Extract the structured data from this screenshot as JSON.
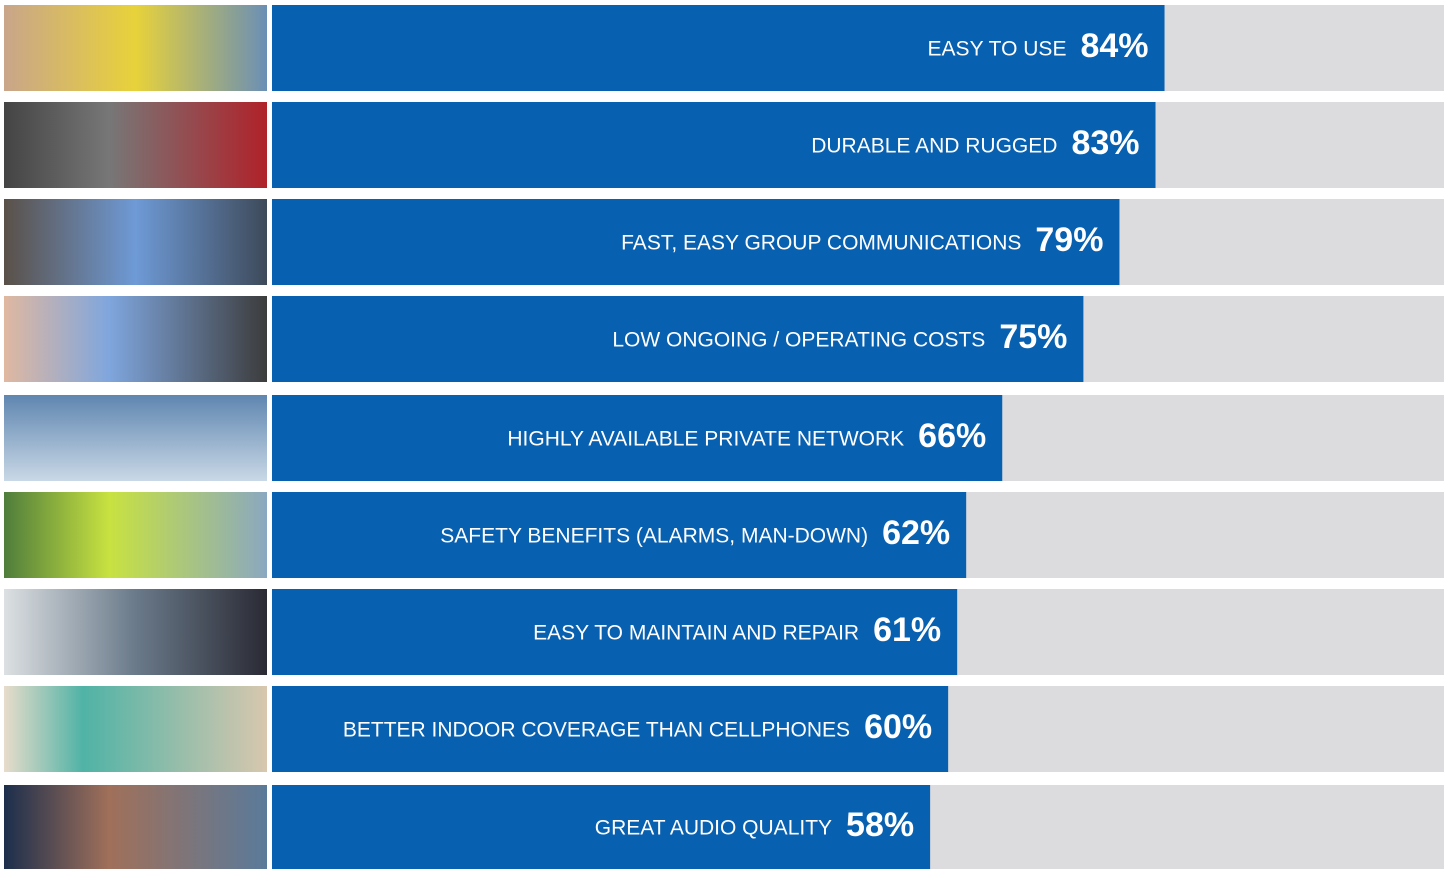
{
  "chart_data": {
    "type": "bar",
    "orientation": "horizontal",
    "color": "#0860b0",
    "track_color": "#dcdcde",
    "categories": [
      "EASY TO USE",
      "DURABLE AND RUGGED",
      "FAST, EASY GROUP COMMUNICATIONS",
      "LOW ONGOING / OPERATING COSTS",
      "HIGHLY AVAILABLE PRIVATE NETWORK",
      "SAFETY BENEFITS (ALARMS, MAN-DOWN)",
      "EASY TO MAINTAIN AND REPAIR",
      "BETTER INDOOR COVERAGE THAN CELLPHONES",
      "GREAT AUDIO QUALITY"
    ],
    "values": [
      84,
      83,
      79,
      75,
      66,
      62,
      61,
      60,
      58
    ],
    "value_labels": [
      "84%",
      "83%",
      "79%",
      "75%",
      "66%",
      "62%",
      "61%",
      "60%",
      "58%"
    ],
    "xlim": [
      -15,
      115
    ]
  }
}
